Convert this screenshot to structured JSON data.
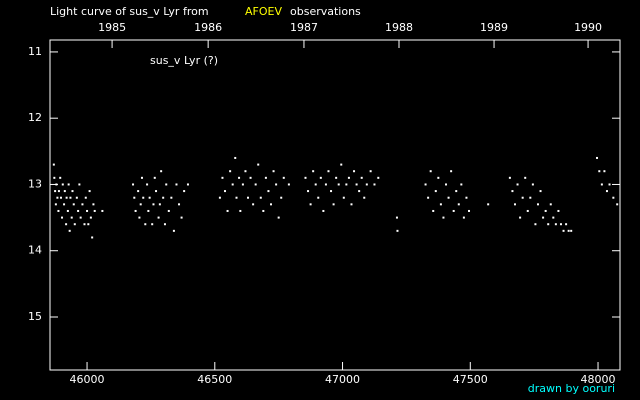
{
  "chart_data": {
    "type": "scatter",
    "title_prefix": "Light curve of sus_v Lyr from",
    "title_source": "AFOEV",
    "title_suffix": "observations",
    "source_color": "#ffff00",
    "annotation": "sus_v Lyr (?)",
    "credit": "drawn by ooruri",
    "credit_color": "#00ffff",
    "color": "#ffffff",
    "y_inverted": true,
    "xlim": [
      45855,
      48086
    ],
    "ylim": [
      10.82,
      15.8
    ],
    "xticks": [
      46000,
      46500,
      47000,
      47500,
      48000
    ],
    "yticks": [
      11,
      12,
      13,
      14,
      15
    ],
    "x2ticks": [
      {
        "value": 46098,
        "label": "1985"
      },
      {
        "value": 46474,
        "label": "1986"
      },
      {
        "value": 46849,
        "label": "1987"
      },
      {
        "value": 47221,
        "label": "1988"
      },
      {
        "value": 47593,
        "label": "1989"
      },
      {
        "value": 47961,
        "label": "1990"
      }
    ],
    "x": [
      45870,
      45872,
      45875,
      45878,
      45880,
      45884,
      45888,
      45890,
      45895,
      45898,
      45902,
      45905,
      45910,
      45913,
      45918,
      45920,
      45925,
      45928,
      45932,
      45935,
      45940,
      45943,
      45948,
      45952,
      45960,
      45965,
      45970,
      45975,
      45982,
      45990,
      45995,
      46000,
      46005,
      46010,
      46015,
      46020,
      46025,
      46030,
      46060,
      46180,
      46185,
      46190,
      46200,
      46205,
      46210,
      46215,
      46220,
      46228,
      46235,
      46240,
      46245,
      46255,
      46260,
      46265,
      46270,
      46280,
      46285,
      46290,
      46298,
      46305,
      46310,
      46320,
      46330,
      46340,
      46350,
      46360,
      46370,
      46380,
      46395,
      46520,
      46530,
      46540,
      46550,
      46560,
      46570,
      46580,
      46585,
      46595,
      46600,
      46610,
      46620,
      46630,
      46640,
      46650,
      46660,
      46670,
      46680,
      46690,
      46700,
      46710,
      46720,
      46730,
      46740,
      46750,
      46760,
      46770,
      46790,
      46855,
      46865,
      46875,
      46885,
      46895,
      46905,
      46915,
      46925,
      46935,
      46945,
      46955,
      46965,
      46975,
      46985,
      46995,
      47005,
      47015,
      47025,
      47035,
      47045,
      47055,
      47065,
      47075,
      47085,
      47095,
      47110,
      47125,
      47140,
      47213,
      47215,
      47325,
      47335,
      47345,
      47355,
      47365,
      47375,
      47385,
      47395,
      47405,
      47415,
      47425,
      47435,
      47445,
      47455,
      47465,
      47475,
      47485,
      47495,
      47570,
      47655,
      47665,
      47675,
      47685,
      47695,
      47705,
      47715,
      47725,
      47735,
      47745,
      47755,
      47765,
      47775,
      47785,
      47795,
      47805,
      47815,
      47825,
      47835,
      47845,
      47855,
      47865,
      47875,
      47885,
      47895,
      47996,
      48005,
      48015,
      48025,
      48035,
      48045,
      48060,
      48075
    ],
    "values": [
      12.7,
      12.9,
      13.1,
      13.3,
      13.0,
      13.2,
      13.4,
      13.1,
      12.9,
      13.2,
      13.5,
      13.0,
      13.3,
      13.1,
      13.6,
      13.2,
      13.4,
      13.0,
      13.7,
      13.2,
      13.5,
      13.1,
      13.3,
      13.6,
      13.2,
      13.4,
      13.0,
      13.5,
      13.3,
      13.6,
      13.2,
      13.4,
      13.6,
      13.1,
      13.5,
      13.8,
      13.3,
      13.4,
      13.4,
      13.0,
      13.2,
      13.4,
      13.1,
      13.5,
      13.3,
      12.9,
      13.2,
      13.6,
      13.0,
      13.4,
      13.2,
      13.6,
      13.3,
      12.9,
      13.1,
      13.5,
      13.3,
      12.8,
      13.2,
      13.6,
      13.0,
      13.4,
      13.2,
      13.7,
      13.0,
      13.3,
      13.5,
      13.1,
      13.0,
      13.2,
      12.9,
      13.1,
      13.4,
      12.8,
      13.0,
      12.6,
      13.2,
      12.9,
      13.4,
      13.0,
      12.8,
      13.2,
      12.9,
      13.3,
      13.0,
      12.7,
      13.2,
      13.4,
      12.9,
      13.1,
      13.3,
      12.8,
      13.0,
      13.5,
      13.2,
      12.9,
      13.0,
      12.9,
      13.1,
      13.3,
      12.8,
      13.0,
      13.2,
      12.9,
      13.4,
      13.0,
      12.8,
      13.1,
      13.3,
      12.9,
      13.0,
      12.7,
      13.2,
      13.0,
      12.9,
      13.3,
      12.8,
      13.0,
      13.1,
      12.9,
      13.2,
      13.0,
      12.8,
      13.0,
      12.9,
      13.5,
      13.7,
      13.0,
      13.2,
      12.8,
      13.4,
      13.1,
      12.9,
      13.3,
      13.5,
      13.0,
      13.2,
      12.8,
      13.4,
      13.1,
      13.3,
      13.0,
      13.5,
      13.2,
      13.4,
      13.3,
      12.9,
      13.1,
      13.3,
      13.0,
      13.5,
      13.2,
      12.9,
      13.4,
      13.2,
      13.0,
      13.6,
      13.3,
      13.1,
      13.5,
      13.4,
      13.6,
      13.3,
      13.5,
      13.6,
      13.4,
      13.6,
      13.7,
      13.6,
      13.7,
      13.7,
      12.6,
      12.8,
      13.0,
      12.8,
      13.1,
      13.0,
      13.2,
      13.3
    ]
  }
}
